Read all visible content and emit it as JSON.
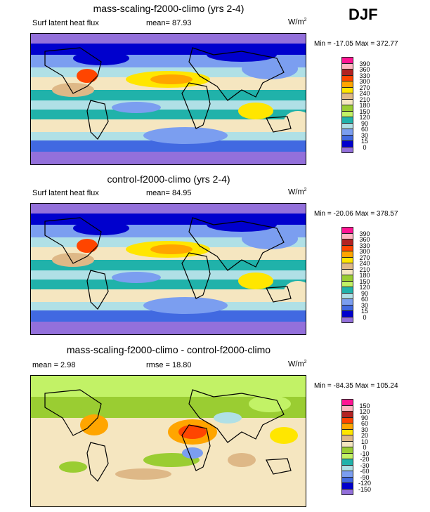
{
  "season": "DJF",
  "units_base": "W/m",
  "units_exp": "2",
  "panels": [
    {
      "title": "mass-scaling-f2000-climo (yrs 2-4)",
      "left_label": "Surf latent heat flux",
      "center_label": "mean=  87.93",
      "minmax": "Min = -17.05 Max = 372.77",
      "levels": [
        "390",
        "360",
        "330",
        "300",
        "270",
        "240",
        "210",
        "180",
        "150",
        "120",
        "90",
        "60",
        "30",
        "15",
        "0"
      ]
    },
    {
      "title": "control-f2000-climo (yrs 2-4)",
      "left_label": "Surf latent heat flux",
      "center_label": "mean=  84.95",
      "minmax": "Min = -20.06 Max = 378.57",
      "levels": [
        "390",
        "360",
        "330",
        "300",
        "270",
        "240",
        "210",
        "180",
        "150",
        "120",
        "90",
        "60",
        "30",
        "15",
        "0"
      ]
    },
    {
      "title": "mass-scaling-f2000-climo - control-f2000-climo",
      "left_label": "mean =   2.98",
      "center_label": "rmse =  18.80",
      "minmax": "Min = -84.35 Max = 105.24",
      "levels": [
        "150",
        "120",
        "90",
        "60",
        "30",
        "20",
        "10",
        "0",
        "-10",
        "-20",
        "-30",
        "-60",
        "-90",
        "-120",
        "-150"
      ]
    }
  ],
  "colorbar_colors": [
    "#ff1493",
    "#ffb6c1",
    "#b22222",
    "#ff4500",
    "#ffa500",
    "#ffe600",
    "#deb887",
    "#f5e6c0",
    "#9acd32",
    "#c2f266",
    "#20b2aa",
    "#b0e0e6",
    "#7b9ef0",
    "#4169e1",
    "#0000cd",
    "#9370db"
  ]
}
